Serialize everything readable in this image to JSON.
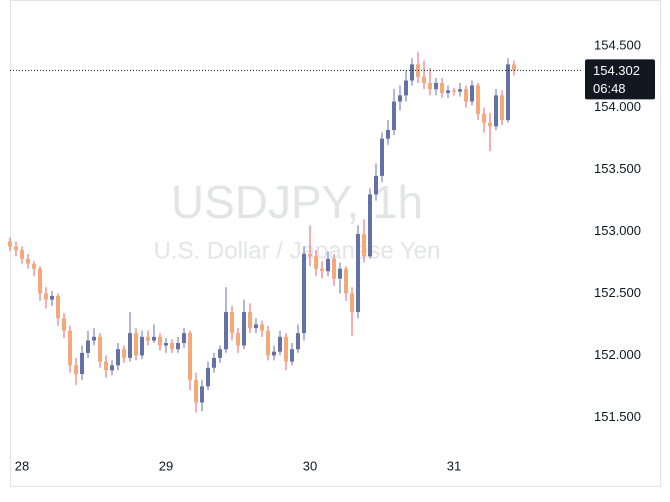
{
  "chart_data": {
    "type": "candlestick",
    "watermark_title": "USDJPY, 1h",
    "watermark_subtitle": "U.S. Dollar / Japanese Yen",
    "categories": [
      null,
      null,
      "28",
      null,
      null,
      null,
      null,
      null,
      null,
      null,
      null,
      null,
      null,
      null,
      null,
      null,
      null,
      null,
      null,
      null,
      null,
      null,
      null,
      null,
      null,
      null,
      "29",
      null,
      null,
      null,
      null,
      null,
      null,
      null,
      null,
      null,
      null,
      null,
      null,
      null,
      null,
      null,
      null,
      null,
      null,
      null,
      null,
      null,
      null,
      null,
      "30",
      null,
      null,
      null,
      null,
      null,
      null,
      null,
      null,
      null,
      null,
      null,
      null,
      null,
      null,
      null,
      null,
      null,
      null,
      null,
      null,
      null,
      null,
      null,
      "31",
      null,
      null,
      null,
      null,
      null,
      null,
      null,
      null,
      null,
      null
    ],
    "open": [
      152.92,
      152.88,
      152.85,
      152.78,
      152.74,
      152.7,
      152.5,
      152.45,
      152.48,
      152.3,
      152.2,
      151.92,
      151.85,
      152.02,
      152.12,
      152.15,
      151.95,
      151.88,
      151.92,
      152.05,
      151.98,
      152.18,
      152.0,
      152.15,
      152.12,
      152.15,
      152.08,
      152.1,
      152.05,
      152.1,
      152.18,
      151.8,
      151.62,
      151.75,
      151.9,
      151.98,
      152.05,
      152.35,
      152.18,
      152.08,
      152.35,
      152.22,
      152.25,
      152.2,
      152.0,
      152.03,
      152.15,
      151.95,
      152.05,
      152.18,
      152.82,
      152.8,
      152.7,
      152.68,
      152.78,
      152.62,
      152.7,
      152.5,
      152.35,
      152.98,
      152.8,
      153.3,
      153.45,
      153.75,
      153.82,
      154.05,
      154.1,
      154.22,
      154.35,
      154.25,
      154.2,
      154.15,
      154.2,
      154.12,
      154.14,
      154.13,
      154.15,
      154.05,
      154.18,
      153.95,
      153.88,
      153.85,
      154.1,
      153.9,
      154.35
    ],
    "high": [
      152.95,
      152.92,
      152.88,
      152.82,
      152.76,
      152.72,
      152.55,
      152.52,
      152.5,
      152.34,
      152.24,
      151.98,
      152.08,
      152.2,
      152.22,
      152.18,
      152.0,
      151.96,
      152.1,
      152.08,
      152.35,
      152.22,
      152.2,
      152.2,
      152.25,
      152.18,
      152.14,
      152.13,
      152.15,
      152.22,
      152.2,
      151.86,
      151.8,
      151.95,
      152.02,
      152.08,
      152.55,
      152.4,
      152.22,
      152.45,
      152.42,
      152.3,
      152.28,
      152.24,
      152.08,
      152.2,
      152.18,
      152.1,
      152.25,
      152.88,
      153.05,
      152.85,
      152.76,
      152.84,
      152.82,
      152.75,
      152.72,
      152.55,
      153.05,
      153.1,
      153.35,
      153.55,
      153.8,
      153.9,
      154.15,
      154.18,
      154.3,
      154.4,
      154.45,
      154.38,
      154.32,
      154.24,
      154.24,
      154.18,
      154.16,
      154.2,
      154.18,
      154.22,
      154.2,
      154.0,
      153.96,
      154.15,
      154.14,
      154.4,
      154.38
    ],
    "low": [
      152.84,
      152.8,
      152.74,
      152.7,
      152.64,
      152.44,
      152.38,
      152.4,
      152.24,
      152.14,
      151.86,
      151.76,
      151.8,
      151.98,
      152.08,
      151.9,
      151.82,
      151.84,
      151.88,
      151.94,
      151.95,
      151.96,
      151.97,
      152.08,
      152.1,
      152.04,
      152.02,
      152.02,
      152.02,
      152.06,
      151.72,
      151.54,
      151.55,
      151.72,
      151.86,
      151.94,
      152.02,
      152.12,
      152.02,
      152.05,
      152.18,
      152.18,
      152.15,
      151.96,
      151.96,
      152.0,
      151.88,
      151.92,
      152.02,
      152.12,
      152.72,
      152.64,
      152.62,
      152.64,
      152.56,
      152.5,
      152.44,
      152.16,
      152.3,
      152.75,
      152.78,
      153.25,
      153.4,
      153.7,
      153.78,
      153.98,
      154.05,
      154.18,
      154.2,
      154.15,
      154.1,
      154.1,
      154.08,
      154.08,
      154.1,
      154.09,
      154.0,
      154.02,
      153.9,
      153.8,
      153.65,
      153.82,
      153.86,
      153.88,
      154.26
    ],
    "close": [
      152.88,
      152.85,
      152.78,
      152.74,
      152.7,
      152.5,
      152.45,
      152.48,
      152.3,
      152.2,
      151.92,
      151.85,
      152.02,
      152.12,
      152.15,
      151.95,
      151.88,
      151.92,
      152.05,
      151.98,
      152.18,
      152.0,
      152.15,
      152.12,
      152.15,
      152.08,
      152.1,
      152.05,
      152.1,
      152.18,
      151.8,
      151.62,
      151.75,
      151.9,
      151.98,
      152.05,
      152.35,
      152.18,
      152.08,
      152.35,
      152.22,
      152.25,
      152.2,
      152.0,
      152.03,
      152.15,
      151.95,
      152.05,
      152.18,
      152.82,
      152.8,
      152.7,
      152.68,
      152.78,
      152.62,
      152.7,
      152.5,
      152.35,
      152.98,
      152.8,
      153.3,
      153.45,
      153.75,
      153.82,
      154.05,
      154.1,
      154.22,
      154.35,
      154.25,
      154.2,
      154.15,
      154.2,
      154.12,
      154.14,
      154.13,
      154.15,
      154.05,
      154.18,
      153.95,
      153.88,
      153.85,
      154.1,
      153.9,
      154.35,
      154.302
    ],
    "up_color": "#6471a8",
    "down_color": "#f5a87a",
    "down_wick_color": "#e0606a",
    "countdown": "06:48",
    "ylim": [
      151.22,
      154.87
    ],
    "yticks": [
      {
        "value": 151.5,
        "label": "151.500"
      },
      {
        "value": 152,
        "label": "152.000"
      },
      {
        "value": 152.5,
        "label": "152.500"
      },
      {
        "value": 153,
        "label": "153.000"
      },
      {
        "value": 153.5,
        "label": "153.500"
      },
      {
        "value": 154,
        "label": "154.000"
      },
      {
        "value": 154.5,
        "label": "154.500"
      }
    ]
  }
}
